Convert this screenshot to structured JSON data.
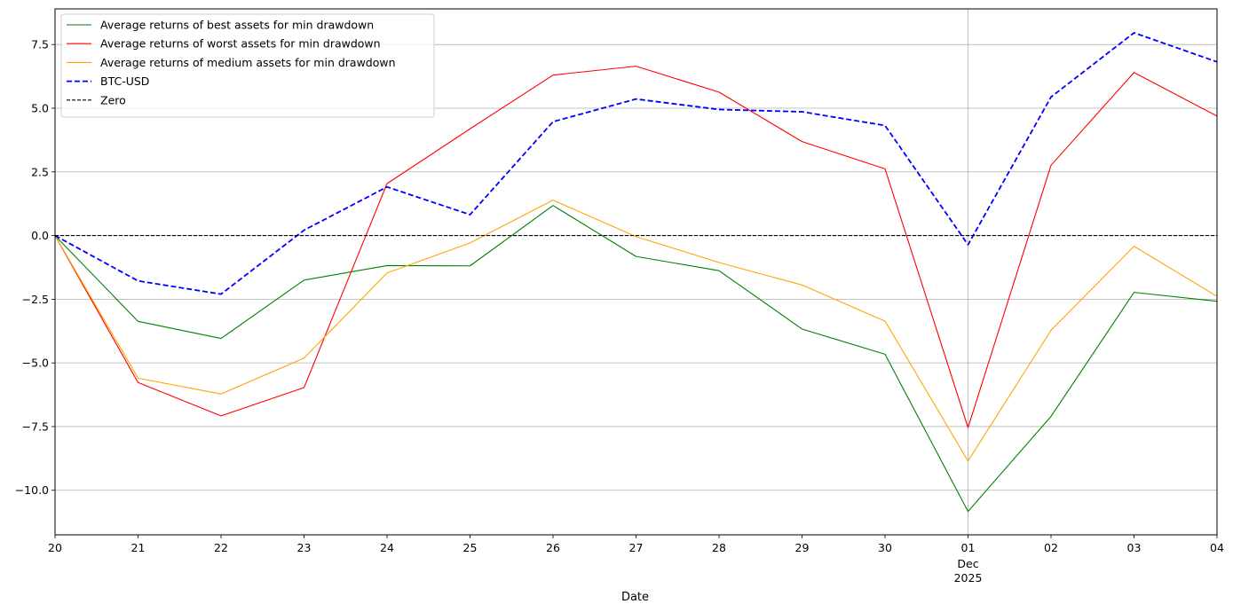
{
  "chart_data": {
    "type": "line",
    "xlabel": "Date",
    "ylabel": "",
    "ylim": [
      -11.75,
      8.9
    ],
    "grid": "horizontal lines plus vertical line at Dec 01",
    "legend_position": "top-left",
    "x": [
      "2025-11-20",
      "2025-11-21",
      "2025-11-22",
      "2025-11-23",
      "2025-11-24",
      "2025-11-25",
      "2025-11-26",
      "2025-11-27",
      "2025-11-28",
      "2025-11-29",
      "2025-11-30",
      "2025-12-01",
      "2025-12-02",
      "2025-12-03",
      "2025-12-04"
    ],
    "x_tick_labels": [
      "20",
      "21",
      "22",
      "23",
      "24",
      "25",
      "26",
      "27",
      "28",
      "29",
      "30",
      "01",
      "02",
      "03",
      "04"
    ],
    "x_secondary_label": [
      "Dec",
      "2025"
    ],
    "y_ticks": [
      -10.0,
      -7.5,
      -5.0,
      -2.5,
      0.0,
      2.5,
      5.0,
      7.5
    ],
    "y_tick_labels": [
      "−10.0",
      "−7.5",
      "−5.0",
      "−2.5",
      "0.0",
      "2.5",
      "5.0",
      "7.5"
    ],
    "series": [
      {
        "name": "Average returns of best assets for min drawdown",
        "color": "#008000",
        "style": "solid",
        "values": [
          0.0,
          -3.37,
          -4.04,
          -1.75,
          -1.18,
          -1.19,
          1.18,
          -0.82,
          -1.38,
          -3.67,
          -4.66,
          -10.83,
          -7.1,
          -2.23,
          -2.58
        ]
      },
      {
        "name": "Average returns of worst assets for min drawdown",
        "color": "#ff0000",
        "style": "solid",
        "values": [
          0.0,
          -5.77,
          -7.08,
          -5.97,
          2.04,
          4.19,
          6.3,
          6.65,
          5.63,
          3.69,
          2.62,
          -7.54,
          2.76,
          6.4,
          4.69
        ]
      },
      {
        "name": "Average returns of medium assets for min drawdown",
        "color": "#ffa500",
        "style": "solid",
        "values": [
          0.0,
          -5.6,
          -6.22,
          -4.81,
          -1.47,
          -0.29,
          1.39,
          -0.04,
          -1.06,
          -1.94,
          -3.36,
          -8.85,
          -3.72,
          -0.42,
          -2.39
        ]
      },
      {
        "name": "BTC-USD",
        "color": "#0000ff",
        "style": "dashed",
        "values": [
          0.0,
          -1.78,
          -2.3,
          0.21,
          1.91,
          0.82,
          4.47,
          5.36,
          4.95,
          4.86,
          4.32,
          -0.36,
          5.44,
          7.96,
          6.82
        ]
      },
      {
        "name": "Zero",
        "color": "#000000",
        "style": "dashed-thin",
        "values": [
          0,
          0,
          0,
          0,
          0,
          0,
          0,
          0,
          0,
          0,
          0,
          0,
          0,
          0,
          0
        ]
      }
    ]
  }
}
